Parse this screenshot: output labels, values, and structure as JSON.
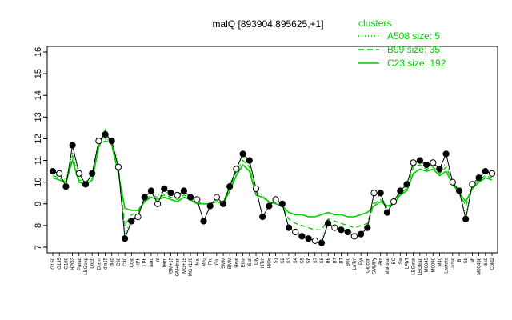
{
  "chart_data": {
    "type": "line",
    "title": "malQ [893904,895625,+1]",
    "ylim": [
      7,
      16
    ],
    "yticks": [
      7,
      8,
      9,
      10,
      11,
      12,
      13,
      14,
      15,
      16
    ],
    "categories": [
      "G150",
      "G135",
      "G180",
      "H2O2",
      "Paraq",
      "LBGexp",
      "Oxctl",
      "Diami",
      "dia15",
      "dia5",
      "C90",
      "C30",
      "Cold",
      "HPh",
      "LPh",
      "aero",
      "nt",
      "ferm",
      "GM+15",
      "GM+tran",
      "MG+15",
      "MG+120",
      "Mal",
      "M/G",
      "Fru",
      "Glu",
      "SMM",
      "BMM",
      "Heat",
      "Etha",
      "Salt",
      "Gly",
      "HTm",
      "HiOs",
      "S1",
      "S2",
      "S3",
      "S4",
      "S5",
      "S6",
      "S7",
      "S8",
      "B6",
      "B7",
      "BT",
      "B60",
      "LoTm",
      "Pyr",
      "Glucon",
      "SMMPy",
      "Ara",
      "Mal-stat",
      "BC",
      "Sw",
      "LPhT",
      "LBGstat",
      "LBGtran",
      "M0045",
      "M0090",
      "M40",
      "Lactate",
      "Lactat",
      "BI",
      "Sb",
      "Mt",
      "M0045b",
      "dia0",
      "Cold2"
    ],
    "series": [
      {
        "name": "A508 size: 5",
        "style": "dotted",
        "values": [
          10.4,
          10.3,
          10.1,
          11.4,
          10.2,
          10.0,
          10.3,
          11.8,
          12.0,
          11.9,
          10.9,
          7.6,
          8.3,
          8.5,
          9.2,
          9.5,
          9.4,
          9.6,
          9.4,
          9.3,
          9.5,
          9.4,
          9.1,
          9.0,
          9.0,
          9.2,
          9.1,
          9.9,
          10.7,
          11.2,
          10.9,
          9.5,
          9.4,
          9.1,
          9.0,
          8.9,
          8.0,
          7.7,
          7.6,
          7.5,
          7.4,
          7.3,
          8.2,
          8.0,
          7.9,
          7.8,
          7.6,
          7.7,
          7.8,
          9.2,
          9.4,
          8.8,
          9.0,
          9.6,
          9.8,
          10.9,
          11.0,
          10.7,
          10.8,
          10.5,
          10.9,
          10.1,
          9.5,
          8.5,
          9.9,
          10.2,
          10.4,
          10.3
        ]
      },
      {
        "name": "B99 size: 35",
        "style": "dashed",
        "values": [
          10.3,
          10.2,
          10.0,
          11.2,
          10.1,
          10.0,
          10.2,
          11.7,
          11.9,
          11.8,
          10.7,
          8.0,
          8.5,
          8.6,
          9.1,
          9.4,
          9.3,
          9.4,
          9.3,
          9.2,
          9.4,
          9.3,
          9.1,
          9.0,
          9.0,
          9.1,
          9.1,
          9.7,
          10.5,
          11.0,
          10.7,
          9.4,
          9.3,
          9.1,
          9.0,
          8.9,
          8.3,
          8.1,
          8.0,
          7.9,
          7.8,
          7.8,
          8.3,
          8.2,
          8.1,
          8.0,
          7.9,
          8.0,
          8.1,
          9.0,
          9.2,
          8.9,
          9.0,
          9.5,
          9.7,
          10.7,
          10.8,
          10.6,
          10.7,
          10.4,
          10.7,
          10.0,
          9.5,
          8.9,
          9.8,
          10.1,
          10.3,
          10.2
        ]
      },
      {
        "name": "C23 size: 192",
        "style": "solid",
        "values": [
          10.2,
          10.1,
          10.0,
          11.0,
          10.0,
          9.9,
          10.1,
          11.6,
          12.4,
          11.7,
          10.4,
          8.8,
          8.7,
          8.7,
          9.1,
          9.3,
          9.2,
          9.3,
          9.2,
          9.1,
          9.3,
          9.2,
          9.0,
          9.0,
          9.0,
          9.1,
          9.0,
          9.6,
          10.3,
          10.8,
          10.5,
          9.4,
          9.3,
          9.1,
          9.0,
          8.9,
          8.6,
          8.5,
          8.5,
          8.4,
          8.4,
          8.5,
          8.6,
          8.5,
          8.5,
          8.4,
          8.4,
          8.5,
          8.6,
          8.9,
          9.1,
          8.9,
          9.0,
          9.4,
          9.6,
          10.4,
          10.6,
          10.5,
          10.6,
          10.3,
          10.5,
          9.9,
          9.5,
          9.1,
          9.7,
          10.0,
          10.2,
          10.1
        ]
      }
    ],
    "points": [
      10.5,
      10.4,
      9.8,
      11.7,
      10.4,
      9.9,
      10.4,
      11.9,
      12.2,
      11.9,
      10.7,
      7.4,
      8.2,
      8.4,
      9.3,
      9.6,
      9.0,
      9.7,
      9.5,
      9.4,
      9.6,
      9.3,
      9.2,
      8.2,
      8.9,
      9.3,
      9.0,
      9.8,
      10.6,
      11.3,
      11.0,
      9.7,
      8.4,
      8.9,
      9.2,
      9.0,
      7.9,
      7.7,
      7.5,
      7.4,
      7.3,
      7.2,
      8.1,
      7.9,
      7.8,
      7.7,
      7.5,
      7.6,
      7.9,
      9.5,
      9.5,
      8.6,
      9.1,
      9.6,
      9.9,
      10.9,
      11.0,
      10.8,
      10.9,
      10.6,
      11.3,
      10.0,
      9.6,
      8.3,
      9.9,
      10.2,
      10.5,
      10.4
    ],
    "legend": {
      "title": "clusters",
      "position": "top-right",
      "color": "#00cc00"
    }
  }
}
